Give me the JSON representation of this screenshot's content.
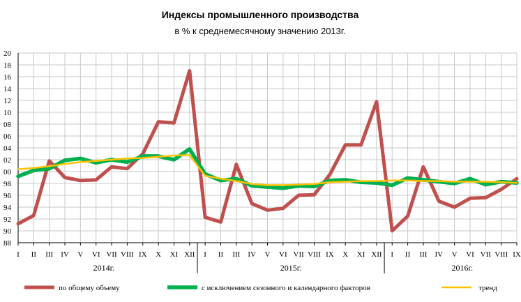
{
  "chart_data": {
    "type": "line",
    "title": "Индексы промышленного производства",
    "subtitle": "в % к среднемесячному значению 2013г.",
    "xlabel": "",
    "ylabel": "",
    "ylim": [
      88,
      120
    ],
    "yticks": [
      "88",
      "90",
      "92",
      "94",
      "96",
      "98",
      "100",
      "102",
      "104",
      "106",
      "108",
      "110",
      "112",
      "114",
      "116",
      "118",
      "120"
    ],
    "ytick_display": [
      "88",
      "90",
      "92",
      "94",
      "96",
      "98",
      "00",
      "02",
      "04",
      "06",
      "08",
      "10",
      "12",
      "14",
      "16",
      "18",
      "20"
    ],
    "categories": [
      "I",
      "II",
      "III",
      "IV",
      "V",
      "VI",
      "VII",
      "VIII",
      "IX",
      "X",
      "XI",
      "XII",
      "I",
      "II",
      "III",
      "IV",
      "V",
      "VI",
      "VII",
      "VIII",
      "IX",
      "X",
      "XI",
      "XII",
      "I",
      "II",
      "III",
      "IV",
      "V",
      "VI",
      "VII",
      "VIII",
      "IX"
    ],
    "years": [
      {
        "label": "2014г."
      },
      {
        "label": "2015г."
      },
      {
        "label": "2016г."
      }
    ],
    "grid": true,
    "legend_position": "bottom",
    "series": [
      {
        "name": "по общему объему",
        "color": "#c0504d",
        "values": [
          91.2,
          92.6,
          101.8,
          99.0,
          98.5,
          98.6,
          100.8,
          100.5,
          103.0,
          108.4,
          108.2,
          117.0,
          92.3,
          91.5,
          101.2,
          94.6,
          93.5,
          93.8,
          96.0,
          96.1,
          99.5,
          104.5,
          104.5,
          111.8,
          90.0,
          92.5,
          100.8,
          95.0,
          94.0,
          95.5,
          95.6,
          97.0,
          98.8
        ]
      },
      {
        "name": "с исключением сезонного и календарного факторов",
        "color": "#00b050",
        "values": [
          99.2,
          100.2,
          100.5,
          101.9,
          102.2,
          101.5,
          102.0,
          101.6,
          102.6,
          102.6,
          102.0,
          103.8,
          99.6,
          98.5,
          98.8,
          97.6,
          97.4,
          97.2,
          97.6,
          97.5,
          98.5,
          98.6,
          98.2,
          98.1,
          97.7,
          98.9,
          98.6,
          98.3,
          98.0,
          98.8,
          97.8,
          98.3,
          98.1
        ]
      },
      {
        "name": "тренд",
        "color": "#ffc000",
        "values": [
          100.4,
          100.6,
          100.9,
          101.3,
          101.6,
          101.8,
          102.0,
          102.2,
          102.3,
          102.5,
          102.7,
          102.8,
          99.3,
          98.8,
          98.4,
          97.9,
          97.7,
          97.7,
          97.8,
          97.9,
          98.2,
          98.3,
          98.4,
          98.4,
          98.5,
          98.5,
          98.4,
          98.4,
          98.3,
          98.3,
          98.3,
          98.2,
          98.1
        ]
      }
    ]
  }
}
